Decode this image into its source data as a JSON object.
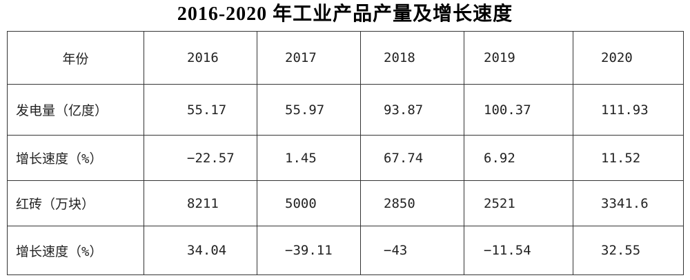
{
  "title": "2016-2020 年工业产品产量及增长速度",
  "table": {
    "header": [
      "年份",
      "2016",
      "2017",
      "2018",
      "2019",
      "2020"
    ],
    "rows": [
      [
        "发电量（亿度）",
        "55.17",
        "55.97",
        "93.87",
        "100.37",
        "111.93"
      ],
      [
        "增长速度（%）",
        "−22.57",
        "1.45",
        "67.74",
        "6.92",
        "11.52"
      ],
      [
        "红砖（万块）",
        "8211",
        "5000",
        "2850",
        "2521",
        "3341.6"
      ],
      [
        "增长速度（%）",
        "34.04",
        "−39.11",
        "−43",
        "−11.54",
        "32.55"
      ]
    ]
  }
}
